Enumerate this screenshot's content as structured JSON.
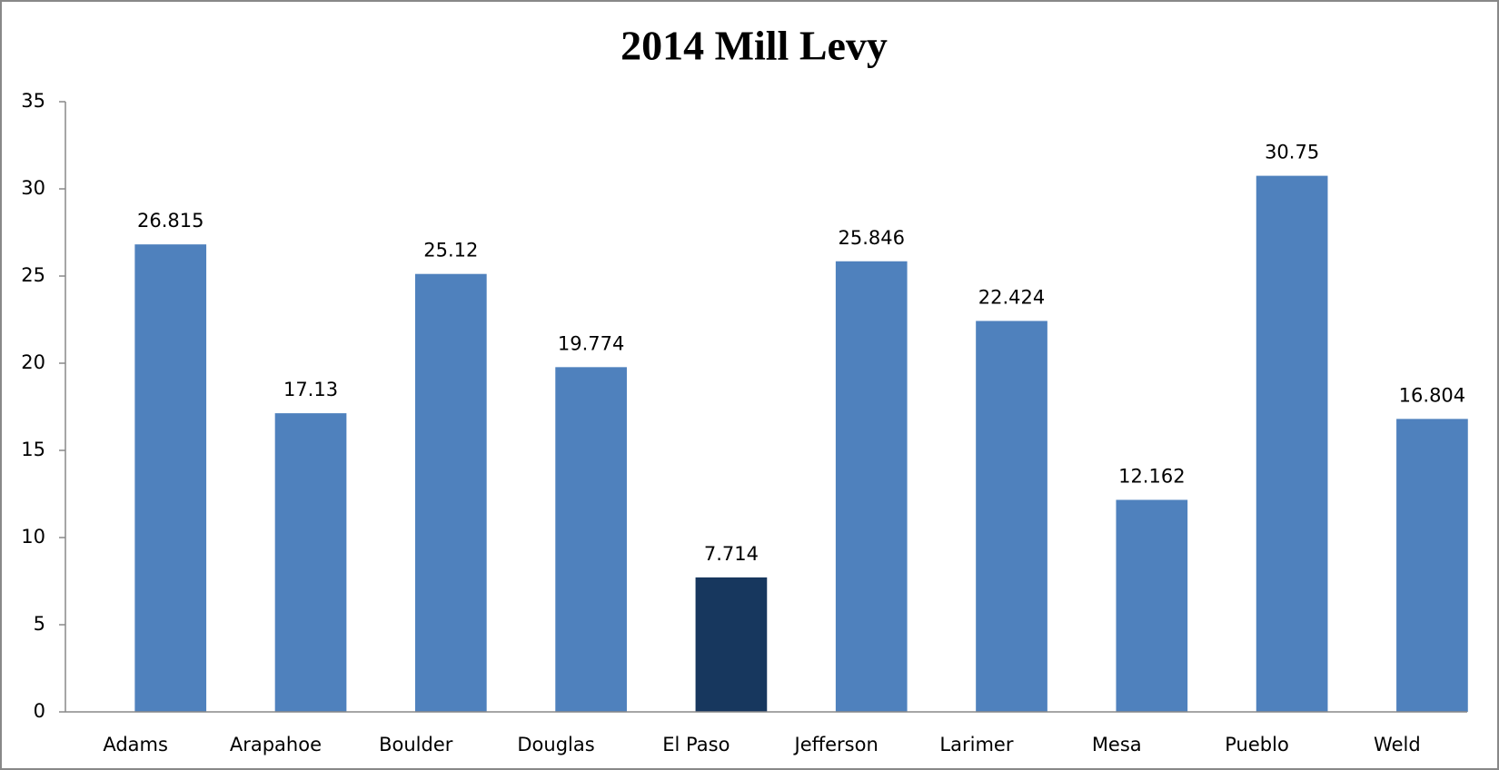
{
  "chart_data": {
    "type": "bar",
    "title": "2014 Mill Levy",
    "categories": [
      "Adams",
      "Arapahoe",
      "Boulder",
      "Douglas",
      "El Paso",
      "Jefferson",
      "Larimer",
      "Mesa",
      "Pueblo",
      "Weld"
    ],
    "values": [
      26.815,
      17.13,
      25.12,
      19.774,
      7.714,
      25.846,
      22.424,
      12.162,
      30.75,
      16.804
    ],
    "colors": [
      "#4f81bd",
      "#4f81bd",
      "#4f81bd",
      "#4f81bd",
      "#17375e",
      "#4f81bd",
      "#4f81bd",
      "#4f81bd",
      "#4f81bd",
      "#4f81bd"
    ],
    "ylim": [
      0,
      35
    ],
    "yticks": [
      0,
      5,
      10,
      15,
      20,
      25,
      30,
      35
    ],
    "grid": false
  }
}
